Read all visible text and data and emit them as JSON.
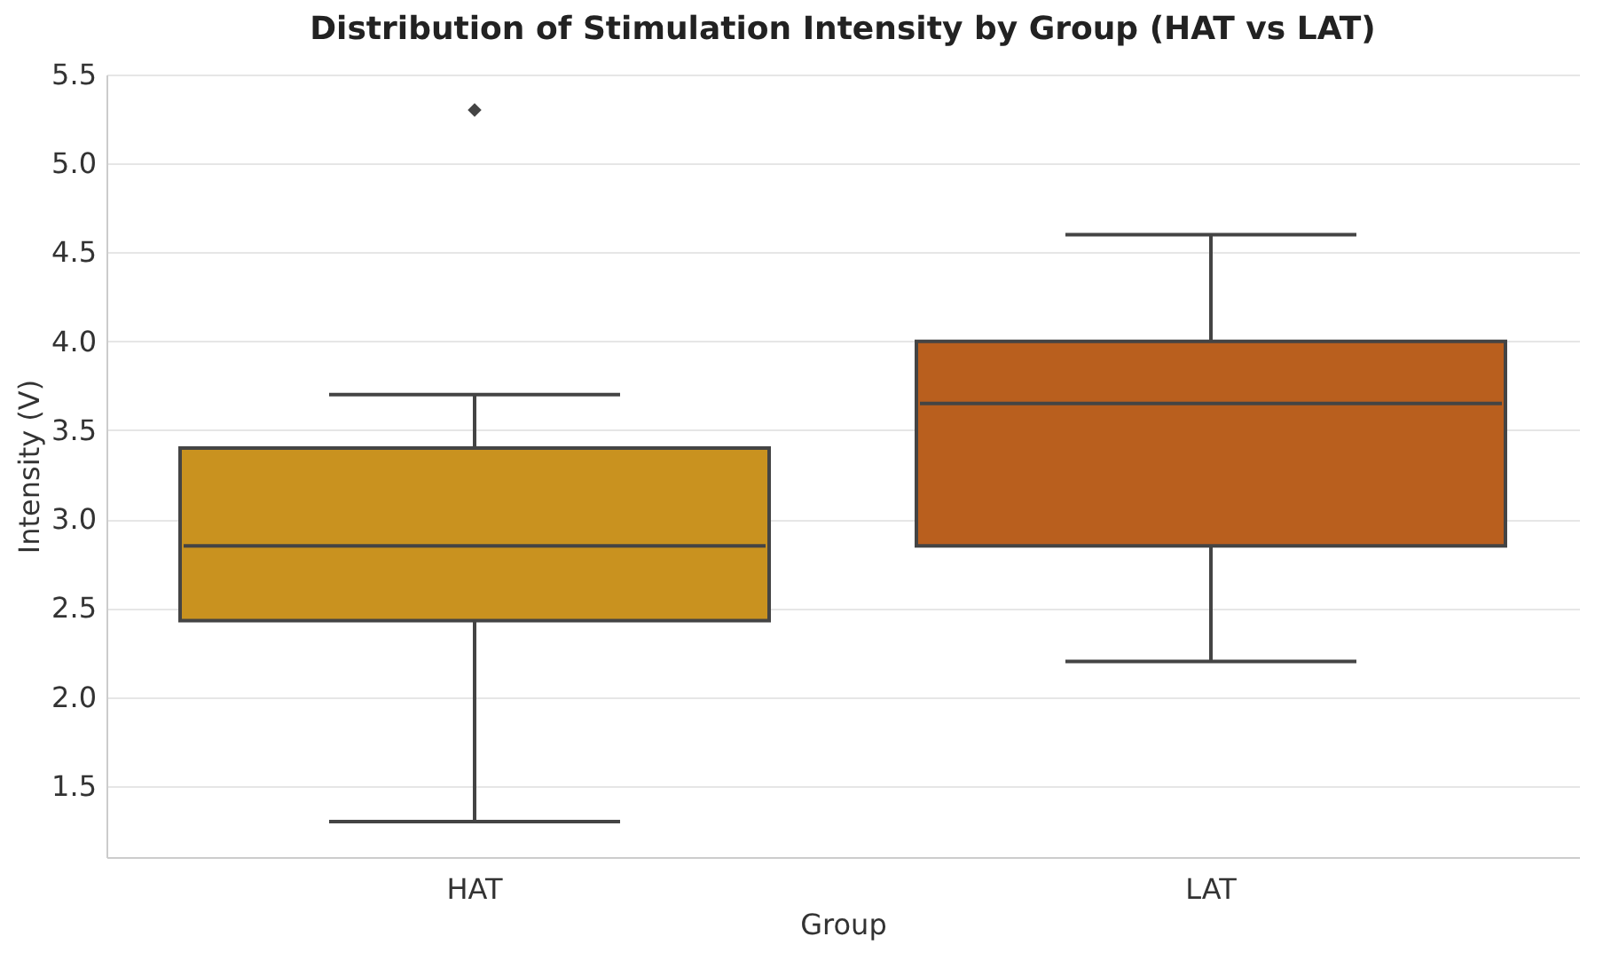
{
  "chart_data": {
    "type": "box",
    "title": "Distribution of Stimulation Intensity by Group (HAT vs LAT)",
    "xlabel": "Group",
    "ylabel": "Intensity (V)",
    "categories": [
      "HAT",
      "LAT"
    ],
    "colors": [
      "#c9921f",
      "#b95f1e"
    ],
    "boxes": [
      {
        "low": 1.3,
        "q1": 2.43,
        "median": 2.85,
        "q3": 3.4,
        "high": 3.7,
        "outliers": [
          5.3
        ]
      },
      {
        "low": 2.2,
        "q1": 2.85,
        "median": 3.65,
        "q3": 4.0,
        "high": 4.6
      }
    ],
    "ylim": [
      1.1,
      5.5
    ],
    "yticks": [
      1.5,
      {
        "value": 2,
        "label": "2.0"
      },
      2.5,
      {
        "value": 3,
        "label": "3.0"
      },
      3.5,
      {
        "value": 4,
        "label": "4.0"
      },
      4.5,
      {
        "value": 5,
        "label": "5.0"
      },
      5.5
    ],
    "grid": "y",
    "marker": "diamond"
  }
}
